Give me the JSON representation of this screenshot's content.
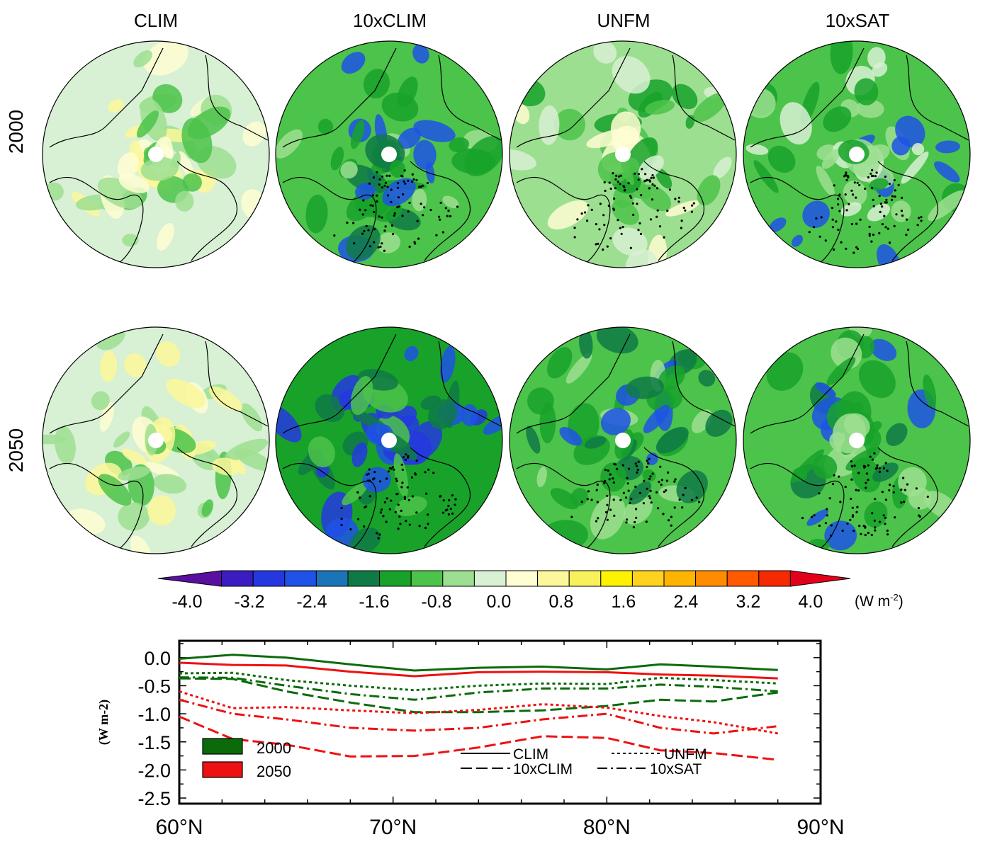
{
  "figure": {
    "column_titles": [
      "CLIM",
      "10xCLIM",
      "UNFM",
      "10xSAT"
    ],
    "row_labels": [
      "2000",
      "2050"
    ]
  },
  "colorbar": {
    "tick_labels": [
      "-4.0",
      "-3.2",
      "-2.4",
      "-1.6",
      "-0.8",
      "0.0",
      "0.8",
      "1.6",
      "2.4",
      "3.2",
      "4.0"
    ],
    "unit": "(W m",
    "unit_exp": "-2",
    "unit_close": ")",
    "colors": [
      "#5a0fa0",
      "#3b1cc0",
      "#2538e0",
      "#1f52e6",
      "#1b74b8",
      "#0f7a46",
      "#18a22a",
      "#4cc34a",
      "#9ddf90",
      "#d8f0d4",
      "#fffdd2",
      "#fbf79a",
      "#f9f15c",
      "#fff200",
      "#ffd21e",
      "#ffb400",
      "#ff8c00",
      "#ff5a00",
      "#f52a00",
      "#e3001b"
    ]
  },
  "chart_data": {
    "type": "line",
    "xlabel": "",
    "ylabel": "(W m-2)",
    "x_tick_labels": [
      "60°N",
      "70°N",
      "80°N",
      "90°N"
    ],
    "y_tick_labels": [
      "0.0",
      "-0.5",
      "-1.0",
      "-1.5",
      "-2.0",
      "-2.5"
    ],
    "xlim": [
      60,
      90
    ],
    "ylim": [
      -2.6,
      0.3
    ],
    "x": [
      60.0,
      62.5,
      65.0,
      68.0,
      71.0,
      74.0,
      77.0,
      80.0,
      82.5,
      85.0,
      88.0
    ],
    "legend_years": [
      {
        "label": "2000",
        "color": "#0b6b0b"
      },
      {
        "label": "2050",
        "color": "#ee1111"
      }
    ],
    "legend_styles": [
      {
        "label": "CLIM",
        "dash": ""
      },
      {
        "label": "UNFM",
        "dash": "4,4"
      },
      {
        "label": "10xCLIM",
        "dash": "16,6"
      },
      {
        "label": "10xSAT",
        "dash": "14,5,3,5"
      }
    ],
    "series": [
      {
        "year": "2000",
        "scenario": "CLIM",
        "values": [
          -0.02,
          0.05,
          0.0,
          -0.12,
          -0.23,
          -0.18,
          -0.16,
          -0.21,
          -0.12,
          -0.16,
          -0.22
        ]
      },
      {
        "year": "2000",
        "scenario": "UNFM",
        "values": [
          -0.28,
          -0.27,
          -0.4,
          -0.5,
          -0.58,
          -0.5,
          -0.46,
          -0.47,
          -0.36,
          -0.4,
          -0.46
        ]
      },
      {
        "year": "2000",
        "scenario": "10xCLIM",
        "values": [
          -0.37,
          -0.38,
          -0.6,
          -0.8,
          -0.97,
          -0.97,
          -0.94,
          -0.86,
          -0.75,
          -0.78,
          -0.62
        ]
      },
      {
        "year": "2000",
        "scenario": "10xSAT",
        "values": [
          -0.35,
          -0.36,
          -0.5,
          -0.65,
          -0.75,
          -0.62,
          -0.55,
          -0.55,
          -0.48,
          -0.52,
          -0.6
        ]
      },
      {
        "year": "2050",
        "scenario": "CLIM",
        "values": [
          -0.09,
          -0.13,
          -0.14,
          -0.25,
          -0.33,
          -0.26,
          -0.25,
          -0.26,
          -0.3,
          -0.32,
          -0.37
        ]
      },
      {
        "year": "2050",
        "scenario": "UNFM",
        "values": [
          -0.6,
          -0.9,
          -0.88,
          -0.94,
          -0.99,
          -0.93,
          -0.83,
          -0.89,
          -1.04,
          -1.15,
          -1.35
        ]
      },
      {
        "year": "2050",
        "scenario": "10xCLIM",
        "values": [
          -1.05,
          -1.45,
          -1.55,
          -1.76,
          -1.75,
          -1.6,
          -1.4,
          -1.43,
          -1.65,
          -1.7,
          -1.82
        ]
      },
      {
        "year": "2050",
        "scenario": "10xSAT",
        "values": [
          -0.75,
          -1.0,
          -1.1,
          -1.25,
          -1.3,
          -1.25,
          -1.1,
          -1.0,
          -1.25,
          -1.35,
          -1.22
        ]
      }
    ]
  }
}
